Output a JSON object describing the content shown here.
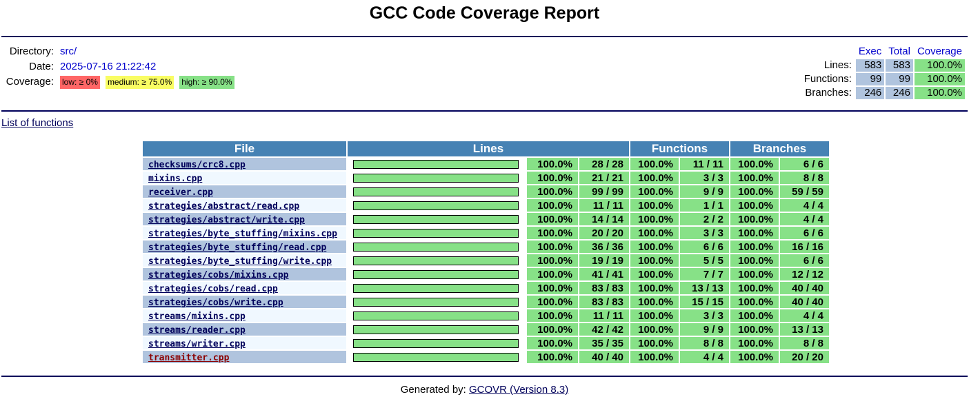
{
  "title": "GCC Code Coverage Report",
  "info": {
    "directory_label": "Directory:",
    "directory": "src/",
    "date_label": "Date:",
    "date": "2025-07-16 21:22:42",
    "coverage_label": "Coverage:",
    "legend": [
      {
        "text": "low: ≥ 0%",
        "color": "#ff6666"
      },
      {
        "text": "medium: ≥ 75.0%",
        "color": "#f9fd63"
      },
      {
        "text": "high: ≥ 90.0%",
        "color": "#87e187"
      }
    ]
  },
  "summary": {
    "headers": [
      "Exec",
      "Total",
      "Coverage"
    ],
    "rows": [
      {
        "label": "Lines:",
        "exec": "583",
        "total": "583",
        "coverage": "100.0%"
      },
      {
        "label": "Functions:",
        "exec": "99",
        "total": "99",
        "coverage": "100.0%"
      },
      {
        "label": "Branches:",
        "exec": "246",
        "total": "246",
        "coverage": "100.0%"
      }
    ]
  },
  "list_link": "List of functions",
  "table": {
    "headers": {
      "file": "File",
      "lines": "Lines",
      "functions": "Functions",
      "branches": "Branches"
    },
    "rows": [
      {
        "file": "checksums/crc8.cpp",
        "line_cov": "100.0%",
        "line_frac": "28 / 28",
        "func_cov": "100.0%",
        "func_frac": "11 / 11",
        "branch_cov": "100.0%",
        "branch_frac": "6 / 6",
        "bar_percent": 100
      },
      {
        "file": "mixins.cpp",
        "line_cov": "100.0%",
        "line_frac": "21 / 21",
        "func_cov": "100.0%",
        "func_frac": "3 / 3",
        "branch_cov": "100.0%",
        "branch_frac": "8 / 8",
        "bar_percent": 100
      },
      {
        "file": "receiver.cpp",
        "line_cov": "100.0%",
        "line_frac": "99 / 99",
        "func_cov": "100.0%",
        "func_frac": "9 / 9",
        "branch_cov": "100.0%",
        "branch_frac": "59 / 59",
        "bar_percent": 100
      },
      {
        "file": "strategies/abstract/read.cpp",
        "line_cov": "100.0%",
        "line_frac": "11 / 11",
        "func_cov": "100.0%",
        "func_frac": "1 / 1",
        "branch_cov": "100.0%",
        "branch_frac": "4 / 4",
        "bar_percent": 100
      },
      {
        "file": "strategies/abstract/write.cpp",
        "line_cov": "100.0%",
        "line_frac": "14 / 14",
        "func_cov": "100.0%",
        "func_frac": "2 / 2",
        "branch_cov": "100.0%",
        "branch_frac": "4 / 4",
        "bar_percent": 100
      },
      {
        "file": "strategies/byte_stuffing/mixins.cpp",
        "line_cov": "100.0%",
        "line_frac": "20 / 20",
        "func_cov": "100.0%",
        "func_frac": "3 / 3",
        "branch_cov": "100.0%",
        "branch_frac": "6 / 6",
        "bar_percent": 100
      },
      {
        "file": "strategies/byte_stuffing/read.cpp",
        "line_cov": "100.0%",
        "line_frac": "36 / 36",
        "func_cov": "100.0%",
        "func_frac": "6 / 6",
        "branch_cov": "100.0%",
        "branch_frac": "16 / 16",
        "bar_percent": 100
      },
      {
        "file": "strategies/byte_stuffing/write.cpp",
        "line_cov": "100.0%",
        "line_frac": "19 / 19",
        "func_cov": "100.0%",
        "func_frac": "5 / 5",
        "branch_cov": "100.0%",
        "branch_frac": "6 / 6",
        "bar_percent": 100
      },
      {
        "file": "strategies/cobs/mixins.cpp",
        "line_cov": "100.0%",
        "line_frac": "41 / 41",
        "func_cov": "100.0%",
        "func_frac": "7 / 7",
        "branch_cov": "100.0%",
        "branch_frac": "12 / 12",
        "bar_percent": 100
      },
      {
        "file": "strategies/cobs/read.cpp",
        "line_cov": "100.0%",
        "line_frac": "83 / 83",
        "func_cov": "100.0%",
        "func_frac": "13 / 13",
        "branch_cov": "100.0%",
        "branch_frac": "40 / 40",
        "bar_percent": 100
      },
      {
        "file": "strategies/cobs/write.cpp",
        "line_cov": "100.0%",
        "line_frac": "83 / 83",
        "func_cov": "100.0%",
        "func_frac": "15 / 15",
        "branch_cov": "100.0%",
        "branch_frac": "40 / 40",
        "bar_percent": 100
      },
      {
        "file": "streams/mixins.cpp",
        "line_cov": "100.0%",
        "line_frac": "11 / 11",
        "func_cov": "100.0%",
        "func_frac": "3 / 3",
        "branch_cov": "100.0%",
        "branch_frac": "4 / 4",
        "bar_percent": 100
      },
      {
        "file": "streams/reader.cpp",
        "line_cov": "100.0%",
        "line_frac": "42 / 42",
        "func_cov": "100.0%",
        "func_frac": "9 / 9",
        "branch_cov": "100.0%",
        "branch_frac": "13 / 13",
        "bar_percent": 100
      },
      {
        "file": "streams/writer.cpp",
        "line_cov": "100.0%",
        "line_frac": "35 / 35",
        "func_cov": "100.0%",
        "func_frac": "8 / 8",
        "branch_cov": "100.0%",
        "branch_frac": "8 / 8",
        "bar_percent": 100
      },
      {
        "file": "transmitter.cpp",
        "line_cov": "100.0%",
        "line_frac": "40 / 40",
        "func_cov": "100.0%",
        "func_frac": "4 / 4",
        "branch_cov": "100.0%",
        "branch_frac": "20 / 20",
        "bar_percent": 100,
        "visited": true
      }
    ]
  },
  "footer": {
    "prefix": "Generated by: ",
    "link": "GCOVR (Version 8.3)"
  }
}
